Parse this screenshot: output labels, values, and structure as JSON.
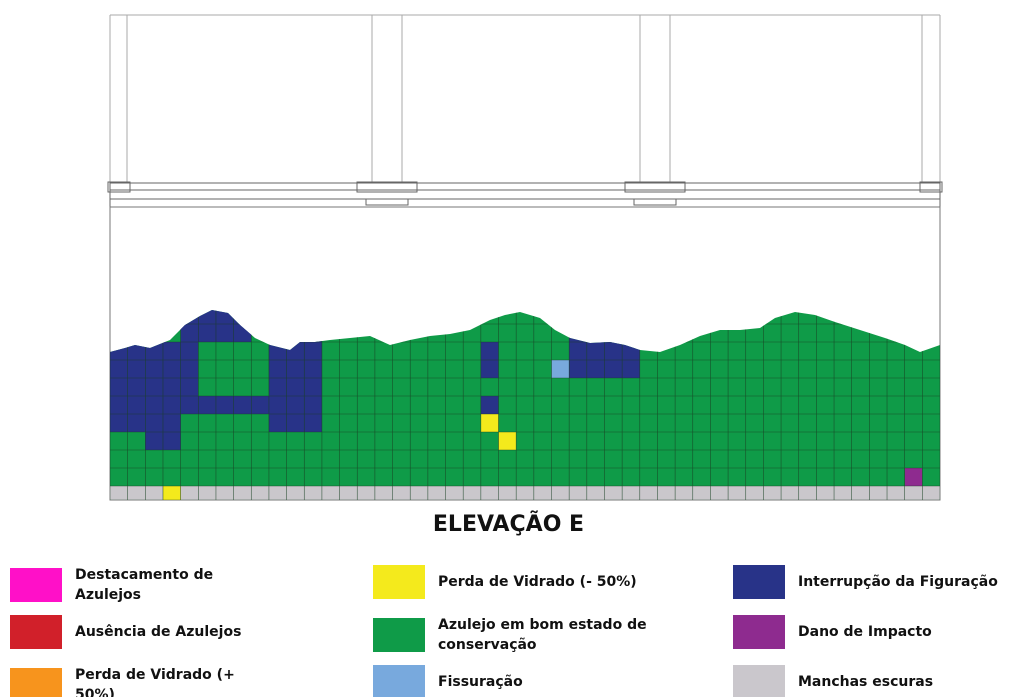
{
  "title": "ELEVAÇÃO E",
  "legend": [
    {
      "label": "Destacamento de Azulejos",
      "color": "#ff10c8"
    },
    {
      "label": "Ausência de Azulejos",
      "color": "#d1202a"
    },
    {
      "label": "Perda de Vidrado (+ 50%)",
      "color": "#f7941d"
    },
    {
      "label": "Perda de Vidrado (- 50%)",
      "color": "#f4ea1c"
    },
    {
      "label": "Azulejo em bom estado de conservação",
      "color": "#0f9b48"
    },
    {
      "label": "Fissuração",
      "color": "#78a9dd"
    },
    {
      "label": "Interrupção da Figuração",
      "color": "#283388"
    },
    {
      "label": "Dano de Impacto",
      "color": "#8e2b8f"
    },
    {
      "label": "Manchas escuras",
      "color": "#cac7cc"
    }
  ]
}
